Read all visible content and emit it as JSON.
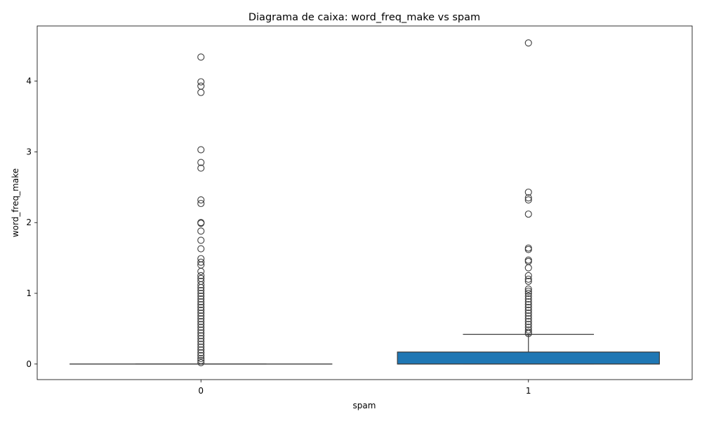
{
  "chart_data": {
    "type": "box",
    "title": "Diagrama de caixa: word_freq_make vs spam",
    "xlabel": "spam",
    "ylabel": "word_freq_make",
    "categories": [
      "0",
      "1"
    ],
    "y_ticks": [
      0,
      1,
      2,
      3,
      4
    ],
    "ylim": [
      -0.22,
      4.78
    ],
    "grid": false,
    "box_color": "#1f77b4",
    "line_color": "#3c3c3c",
    "series": [
      {
        "category": "0",
        "whisker_low": 0.0,
        "q1": 0.0,
        "median": 0.0,
        "q3": 0.0,
        "whisker_high": 0.0,
        "outliers": [
          4.34,
          3.99,
          3.93,
          3.84,
          3.03,
          2.85,
          2.77,
          2.32,
          2.27,
          2.0,
          1.99,
          1.88,
          1.75,
          1.63,
          1.49,
          1.44,
          1.4,
          1.31,
          1.25,
          1.21,
          1.17,
          1.12,
          1.08,
          1.04,
          1.0,
          0.96,
          0.92,
          0.88,
          0.84,
          0.8,
          0.76,
          0.72,
          0.68,
          0.64,
          0.6,
          0.56,
          0.52,
          0.48,
          0.44,
          0.4,
          0.36,
          0.32,
          0.28,
          0.24,
          0.2,
          0.16,
          0.12,
          0.08,
          0.05,
          0.02
        ]
      },
      {
        "category": "1",
        "whisker_low": 0.0,
        "q1": 0.0,
        "median": 0.0,
        "q3": 0.17,
        "whisker_high": 0.42,
        "outliers": [
          4.54,
          2.43,
          2.35,
          2.32,
          2.12,
          1.64,
          1.62,
          1.47,
          1.45,
          1.36,
          1.25,
          1.2,
          1.17,
          1.06,
          1.03,
          1.0,
          0.96,
          0.92,
          0.88,
          0.84,
          0.8,
          0.76,
          0.72,
          0.68,
          0.64,
          0.6,
          0.56,
          0.52,
          0.48,
          0.45,
          0.43
        ]
      }
    ]
  }
}
